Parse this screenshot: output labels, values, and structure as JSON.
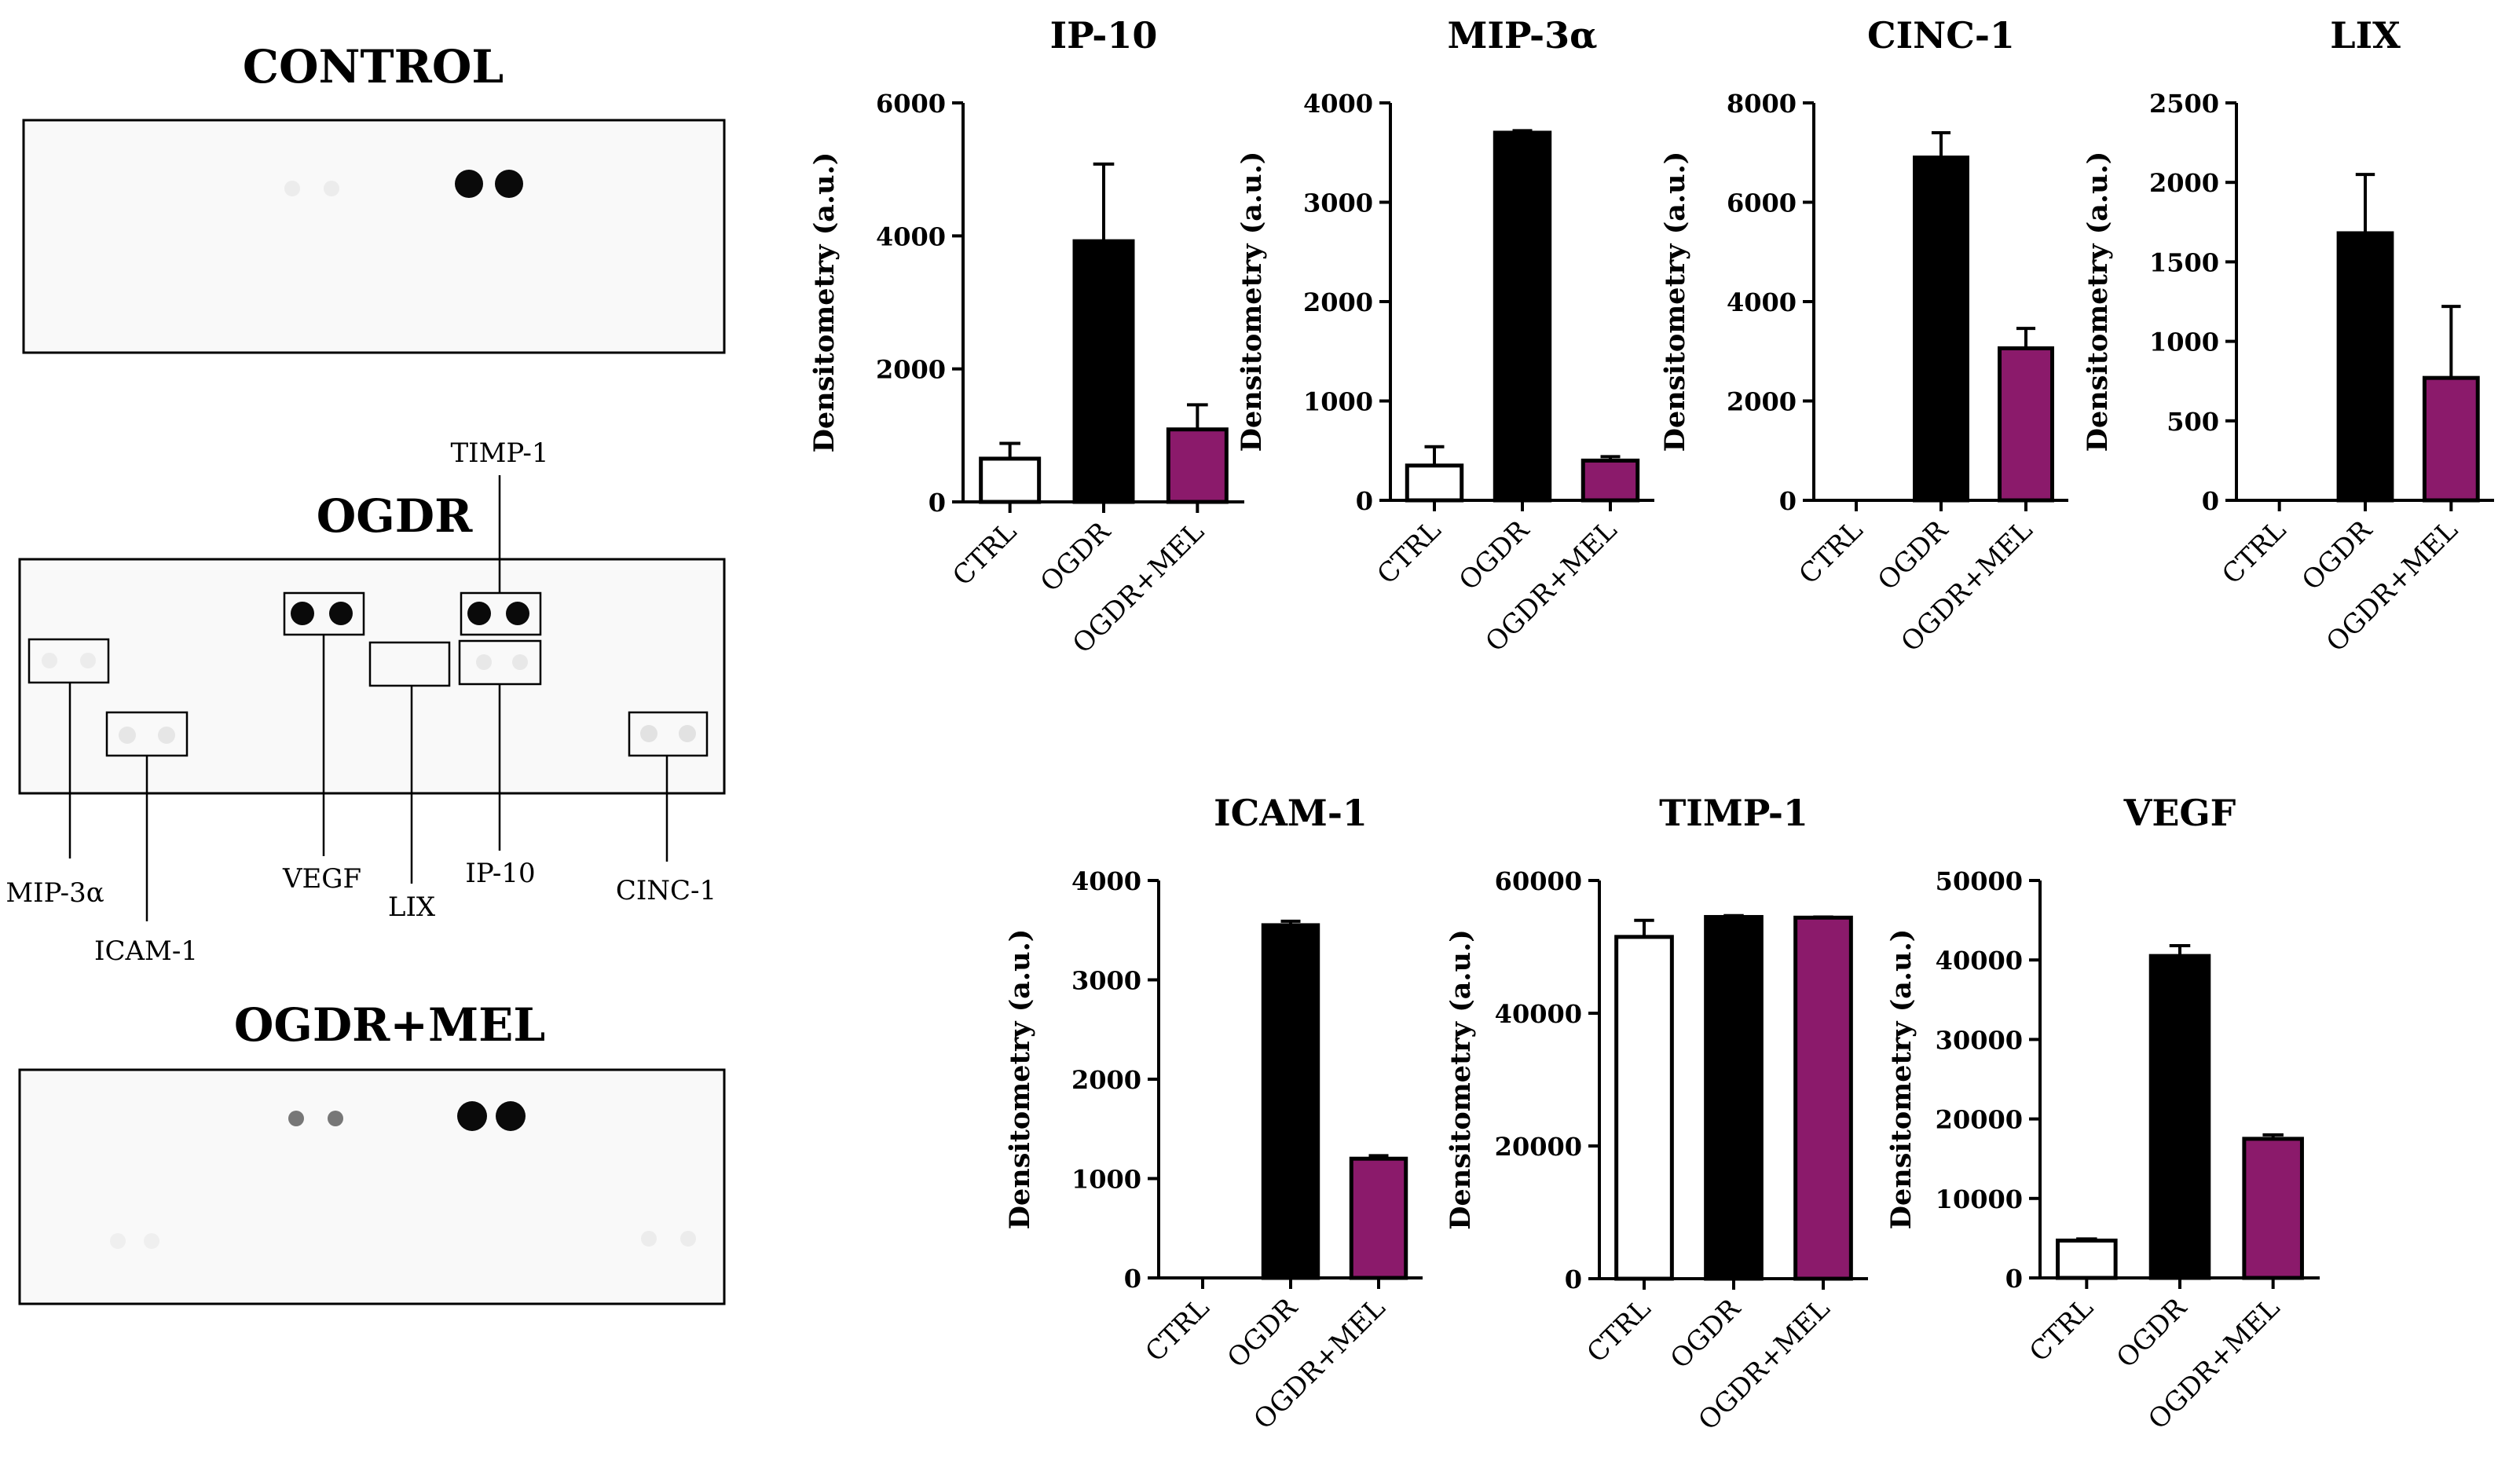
{
  "arrays": {
    "control_title": "CONTROL",
    "ogdr_title": "OGDR",
    "mel_title": "OGDR+MEL",
    "callouts": {
      "timp1": "TIMP-1",
      "mip3a": "MIP-3α",
      "icam1": "ICAM-1",
      "vegf": "VEGF",
      "lix": "LIX",
      "ip10": "IP-10",
      "cinc1": "CINC-1"
    }
  },
  "colors": {
    "ctrl_fill": "#ffffff",
    "ogdr_fill": "#000000",
    "mel_fill": "#8b1a6b"
  },
  "chart_data": [
    {
      "type": "bar",
      "title": "IP-10",
      "ylabel": "Densitometry (a.u.)",
      "categories": [
        "CTRL",
        "OGDR",
        "OGDR+MEL"
      ],
      "values": [
        650,
        3920,
        1090
      ],
      "errors": [
        230,
        1160,
        370
      ],
      "ylim": [
        0,
        6000
      ],
      "yticks": [
        0,
        2000,
        4000,
        6000
      ]
    },
    {
      "type": "bar",
      "title": "MIP-3α",
      "ylabel": "Densitometry (a.u.)",
      "categories": [
        "CTRL",
        "OGDR",
        "OGDR+MEL"
      ],
      "values": [
        350,
        3700,
        400
      ],
      "errors": [
        190,
        20,
        40
      ],
      "ylim": [
        0,
        4000
      ],
      "yticks": [
        0,
        1000,
        2000,
        3000,
        4000
      ]
    },
    {
      "type": "bar",
      "title": "CINC-1",
      "ylabel": "Densitometry (a.u.)",
      "categories": [
        "CTRL",
        "OGDR",
        "OGDR+MEL"
      ],
      "values": [
        0,
        6900,
        3060
      ],
      "errors": [
        0,
        500,
        400
      ],
      "ylim": [
        0,
        8000
      ],
      "yticks": [
        0,
        2000,
        4000,
        6000,
        8000
      ]
    },
    {
      "type": "bar",
      "title": "LIX",
      "ylabel": "Densitometry (a.u.)",
      "categories": [
        "CTRL",
        "OGDR",
        "OGDR+MEL"
      ],
      "values": [
        0,
        1680,
        770
      ],
      "errors": [
        0,
        370,
        450
      ],
      "ylim": [
        0,
        2500
      ],
      "yticks": [
        0,
        500,
        1000,
        1500,
        2000,
        2500
      ]
    },
    {
      "type": "bar",
      "title": "ICAM-1",
      "ylabel": "Densitometry (a.u.)",
      "categories": [
        "CTRL",
        "OGDR",
        "OGDR+MEL"
      ],
      "values": [
        0,
        3550,
        1200
      ],
      "errors": [
        0,
        40,
        30
      ],
      "ylim": [
        0,
        4000
      ],
      "yticks": [
        0,
        1000,
        2000,
        3000,
        4000
      ]
    },
    {
      "type": "bar",
      "title": "TIMP-1",
      "ylabel": "Densitometry (a.u.)",
      "categories": [
        "CTRL",
        "OGDR",
        "OGDR+MEL"
      ],
      "values": [
        51500,
        54500,
        54400
      ],
      "errors": [
        2500,
        200,
        100
      ],
      "ylim": [
        0,
        60000
      ],
      "yticks": [
        0,
        20000,
        40000,
        60000
      ]
    },
    {
      "type": "bar",
      "title": "VEGF",
      "ylabel": "Densitometry (a.u.)",
      "categories": [
        "CTRL",
        "OGDR",
        "OGDR+MEL"
      ],
      "values": [
        4700,
        40500,
        17500
      ],
      "errors": [
        200,
        1300,
        500
      ],
      "ylim": [
        0,
        50000
      ],
      "yticks": [
        0,
        10000,
        20000,
        30000,
        40000,
        50000
      ]
    }
  ]
}
